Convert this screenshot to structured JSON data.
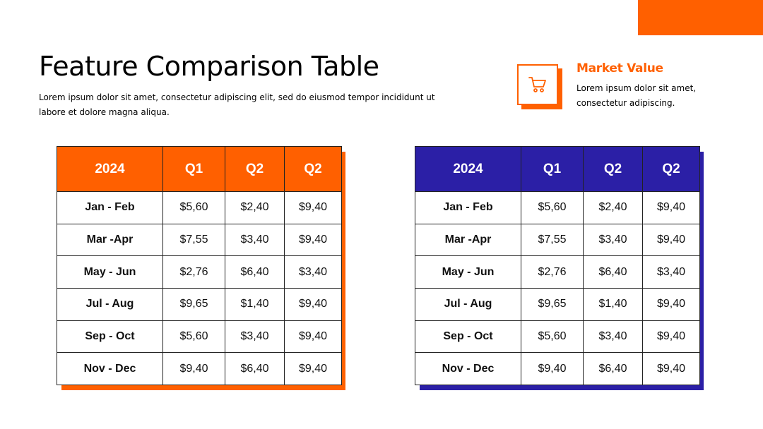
{
  "colors": {
    "orange": "#ff6000",
    "blue": "#2b1fa6"
  },
  "header": {
    "title": "Feature Comparison Table",
    "subtitle": "Lorem ipsum dolor sit amet, consectetur adipiscing elit, sed do eiusmod tempor incididunt ut labore et dolore magna aliqua."
  },
  "market": {
    "icon": "cart-icon",
    "title": "Market Value",
    "text": "Lorem ipsum dolor sit amet, consectetur adipiscing."
  },
  "tables": [
    {
      "theme": "orange",
      "headers": [
        "2024",
        "Q1",
        "Q2",
        "Q2"
      ],
      "rows": [
        [
          "Jan - Feb",
          "$5,60",
          "$2,40",
          "$9,40"
        ],
        [
          "Mar -Apr",
          "$7,55",
          "$3,40",
          "$9,40"
        ],
        [
          "May - Jun",
          "$2,76",
          "$6,40",
          "$3,40"
        ],
        [
          "Jul - Aug",
          "$9,65",
          "$1,40",
          "$9,40"
        ],
        [
          "Sep - Oct",
          "$5,60",
          "$3,40",
          "$9,40"
        ],
        [
          "Nov - Dec",
          "$9,40",
          "$6,40",
          "$9,40"
        ]
      ]
    },
    {
      "theme": "blue",
      "headers": [
        "2024",
        "Q1",
        "Q2",
        "Q2"
      ],
      "rows": [
        [
          "Jan - Feb",
          "$5,60",
          "$2,40",
          "$9,40"
        ],
        [
          "Mar -Apr",
          "$7,55",
          "$3,40",
          "$9,40"
        ],
        [
          "May - Jun",
          "$2,76",
          "$6,40",
          "$3,40"
        ],
        [
          "Jul - Aug",
          "$9,65",
          "$1,40",
          "$9,40"
        ],
        [
          "Sep - Oct",
          "$5,60",
          "$3,40",
          "$9,40"
        ],
        [
          "Nov - Dec",
          "$9,40",
          "$6,40",
          "$9,40"
        ]
      ]
    }
  ]
}
